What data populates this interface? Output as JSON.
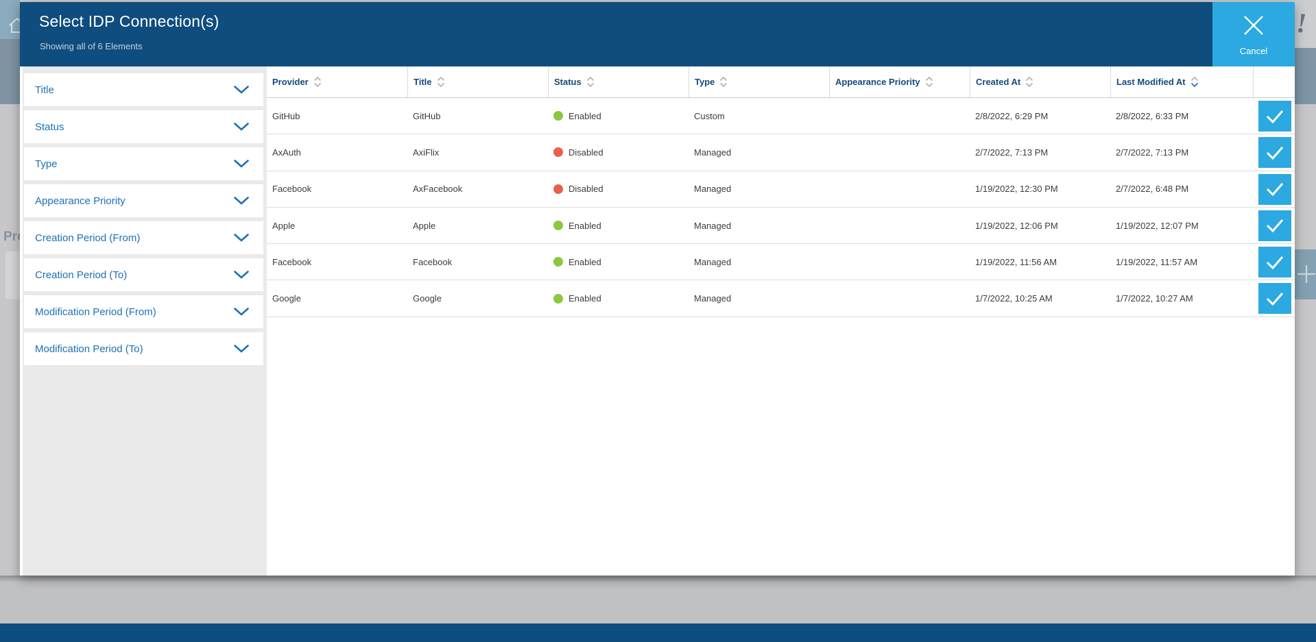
{
  "modal": {
    "title": "Select IDP Connection(s)",
    "subtitle": "Showing all of 6 Elements",
    "cancel_label": "Cancel"
  },
  "filters": [
    {
      "label": "Title"
    },
    {
      "label": "Status"
    },
    {
      "label": "Type"
    },
    {
      "label": "Appearance Priority"
    },
    {
      "label": "Creation Period (From)"
    },
    {
      "label": "Creation Period (To)"
    },
    {
      "label": "Modification Period (From)"
    },
    {
      "label": "Modification Period (To)"
    }
  ],
  "table": {
    "columns": [
      {
        "key": "provider",
        "label": "Provider",
        "sortable": true,
        "sort": null
      },
      {
        "key": "title",
        "label": "Title",
        "sortable": true,
        "sort": null
      },
      {
        "key": "status",
        "label": "Status",
        "sortable": true,
        "sort": null
      },
      {
        "key": "type",
        "label": "Type",
        "sortable": true,
        "sort": null
      },
      {
        "key": "appearance_priority",
        "label": "Appearance Priority",
        "sortable": true,
        "sort": null
      },
      {
        "key": "created_at",
        "label": "Created At",
        "sortable": true,
        "sort": null
      },
      {
        "key": "last_modified_at",
        "label": "Last Modified At",
        "sortable": true,
        "sort": "desc"
      }
    ],
    "rows": [
      {
        "provider": "GitHub",
        "title": "GitHub",
        "status": "Enabled",
        "type": "Custom",
        "appearance_priority": "",
        "created_at": "2/8/2022, 6:29 PM",
        "last_modified_at": "2/8/2022, 6:33 PM",
        "selected": true
      },
      {
        "provider": "AxAuth",
        "title": "AxiFlix",
        "status": "Disabled",
        "type": "Managed",
        "appearance_priority": "",
        "created_at": "2/7/2022, 7:13 PM",
        "last_modified_at": "2/7/2022, 7:13 PM",
        "selected": true
      },
      {
        "provider": "Facebook",
        "title": "AxFacebook",
        "status": "Disabled",
        "type": "Managed",
        "appearance_priority": "",
        "created_at": "1/19/2022, 12:30 PM",
        "last_modified_at": "2/7/2022, 6:48 PM",
        "selected": true
      },
      {
        "provider": "Apple",
        "title": "Apple",
        "status": "Enabled",
        "type": "Managed",
        "appearance_priority": "",
        "created_at": "1/19/2022, 12:06 PM",
        "last_modified_at": "1/19/2022, 12:07 PM",
        "selected": true
      },
      {
        "provider": "Facebook",
        "title": "Facebook",
        "status": "Enabled",
        "type": "Managed",
        "appearance_priority": "",
        "created_at": "1/19/2022, 11:56 AM",
        "last_modified_at": "1/19/2022, 11:57 AM",
        "selected": true
      },
      {
        "provider": "Google",
        "title": "Google",
        "status": "Enabled",
        "type": "Managed",
        "appearance_priority": "",
        "created_at": "1/7/2022, 10:25 AM",
        "last_modified_at": "1/7/2022, 10:27 AM",
        "selected": true
      }
    ]
  },
  "background_page": {
    "left_partial_text": "Pro",
    "right_exclamation": "!"
  },
  "colors": {
    "header_navy": "#0e4d7e",
    "accent_blue": "#2ba9e0",
    "link_blue": "#1d70b7",
    "status": {
      "Enabled": "#8dc63f",
      "Disabled": "#e8604c"
    }
  }
}
